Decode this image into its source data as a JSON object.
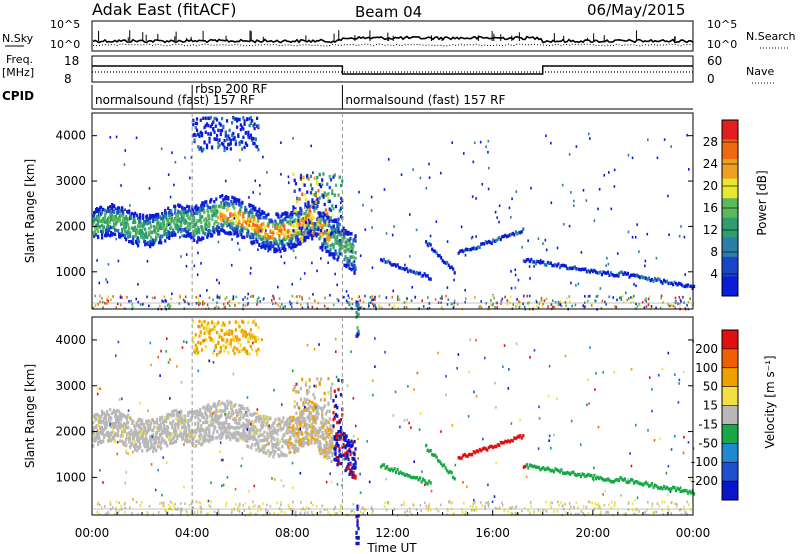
{
  "header": {
    "title": "Adak East (fitACF)",
    "beam": "Beam 04",
    "date": "06/May/2015"
  },
  "chart_data": [
    {
      "type": "line",
      "panel": "noise",
      "left_label": "N.Sky",
      "left_ticks": [
        "10^5",
        "10^0"
      ],
      "right_label": "N.Search",
      "right_ticks": [
        "10^5",
        "10^0"
      ],
      "scale": "log",
      "ylim": [
        1,
        100000
      ]
    },
    {
      "type": "line",
      "panel": "frequency",
      "left_label_1": "Freq.",
      "left_label_2": "[MHz]",
      "left_ticks": [
        "18",
        "8"
      ],
      "right_label": "Nave",
      "right_ticks": [
        "60",
        "0"
      ],
      "ylim_left": [
        8,
        18
      ],
      "ylim_right": [
        0,
        60
      ]
    },
    {
      "type": "table",
      "panel": "cpid",
      "label": "CPID",
      "segments": [
        {
          "start_hour": 0,
          "end_hour": 4,
          "text": "normalsound (fast) 157 RF"
        },
        {
          "start_hour": 4,
          "end_hour": 10,
          "text": "rbsp 200 RF"
        },
        {
          "start_hour": 10,
          "end_hour": 24,
          "text": "normalsound (fast) 157 RF"
        }
      ]
    },
    {
      "type": "heatmap",
      "panel": "power",
      "ylabel": "Slant Range [km]",
      "yticks": [
        "4000",
        "3000",
        "2000",
        "1000"
      ],
      "ylim": [
        180,
        4500
      ],
      "colorbar_label": "Power [dB]",
      "colorbar_ticks": [
        "28",
        "24",
        "20",
        "16",
        "12",
        "8",
        "4"
      ],
      "clim": [
        0,
        30
      ],
      "color_scale": [
        "#0b1cd8",
        "#1b45c8",
        "#2a7ea8",
        "#2e9e6e",
        "#5cb85c",
        "#e8e830",
        "#f0a020",
        "#ee6a10",
        "#e02020"
      ]
    },
    {
      "type": "heatmap",
      "panel": "velocity",
      "ylabel": "Slant Range [km]",
      "yticks": [
        "4000",
        "3000",
        "2000",
        "1000"
      ],
      "ylim": [
        180,
        4500
      ],
      "colorbar_label": "Velocity [m s⁻¹]",
      "colorbar_ticks": [
        "200",
        "100",
        "50",
        "15",
        "-15",
        "-50",
        "-100",
        "-200"
      ],
      "clim": [
        -250,
        250
      ],
      "ground_scatter_color": "#b8b8b8",
      "color_scale": [
        "#0a14c8",
        "#1e50d0",
        "#1e8ad0",
        "#18a848",
        "#b8b8b8",
        "#f0e040",
        "#f0a000",
        "#f06000",
        "#e01010"
      ],
      "xlabel": "Time UT",
      "xticks": [
        "00:00",
        "04:00",
        "08:00",
        "12:00",
        "16:00",
        "20:00",
        "00:00"
      ],
      "xlim_hours": [
        0,
        24
      ]
    }
  ]
}
